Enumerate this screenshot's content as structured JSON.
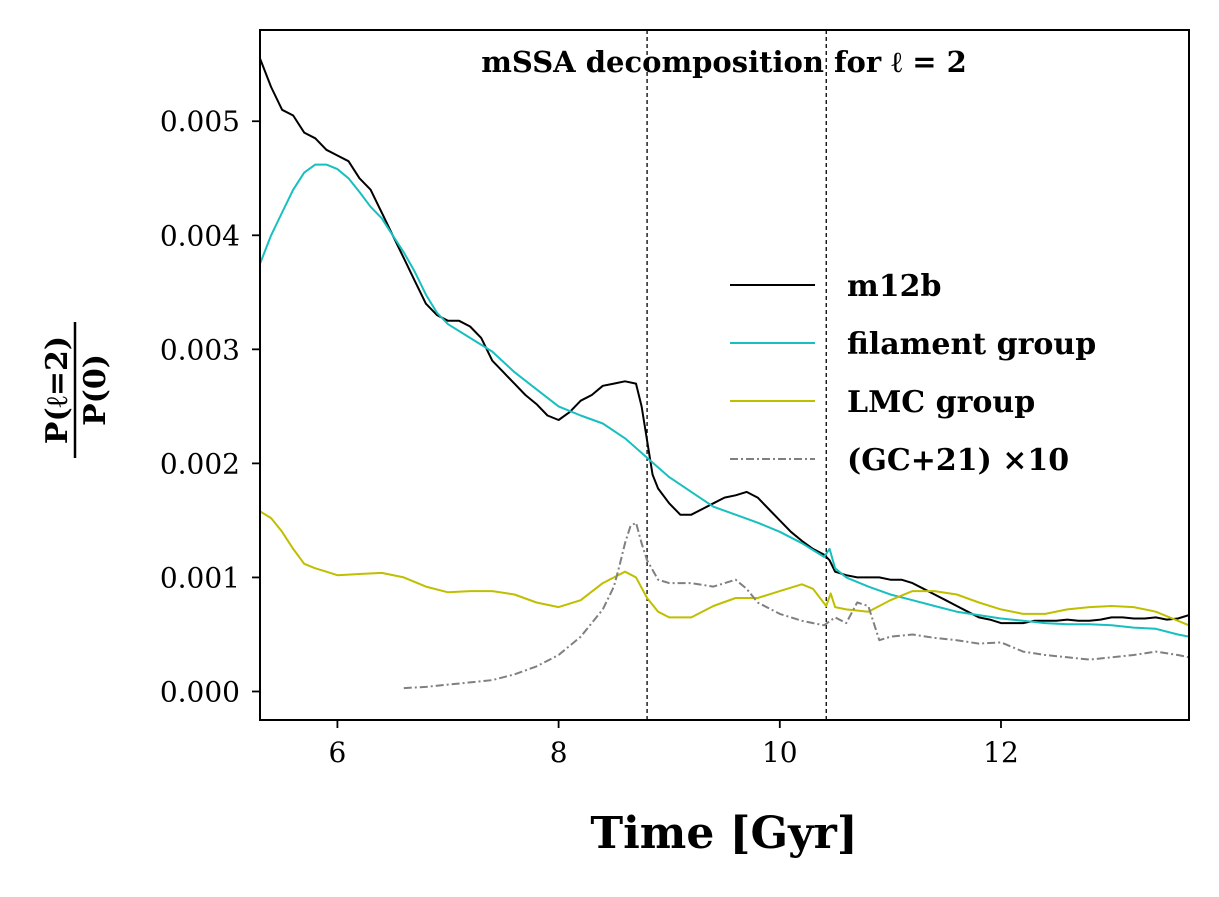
{
  "chart_data": {
    "type": "line",
    "title": "mSSA decomposition for ℓ = 2",
    "xlabel": "Time [Gyr]",
    "ylabel": {
      "numerator": "P(ℓ=2)",
      "denominator": "P(0)"
    },
    "xlim": [
      5.3,
      13.7
    ],
    "ylim": [
      -0.00025,
      0.0058
    ],
    "x_ticks": [
      6,
      8,
      10,
      12
    ],
    "x_tick_labels": [
      "6",
      "8",
      "10",
      "12"
    ],
    "y_ticks": [
      0.0,
      0.001,
      0.002,
      0.003,
      0.004,
      0.005
    ],
    "y_tick_labels": [
      "0.000",
      "0.001",
      "0.002",
      "0.003",
      "0.004",
      "0.005"
    ],
    "vlines": [
      8.8,
      10.42
    ],
    "legend_position": "center-right",
    "series": [
      {
        "name": "m12b",
        "color": "#000000",
        "style": "solid",
        "points": [
          [
            5.3,
            0.00555
          ],
          [
            5.4,
            0.0053
          ],
          [
            5.5,
            0.0051
          ],
          [
            5.6,
            0.00505
          ],
          [
            5.7,
            0.0049
          ],
          [
            5.8,
            0.00485
          ],
          [
            5.9,
            0.00475
          ],
          [
            6.0,
            0.0047
          ],
          [
            6.1,
            0.00465
          ],
          [
            6.2,
            0.0045
          ],
          [
            6.3,
            0.0044
          ],
          [
            6.4,
            0.0042
          ],
          [
            6.5,
            0.004
          ],
          [
            6.6,
            0.0038
          ],
          [
            6.7,
            0.0036
          ],
          [
            6.8,
            0.0034
          ],
          [
            6.9,
            0.0033
          ],
          [
            7.0,
            0.00325
          ],
          [
            7.1,
            0.00325
          ],
          [
            7.2,
            0.0032
          ],
          [
            7.3,
            0.0031
          ],
          [
            7.4,
            0.0029
          ],
          [
            7.5,
            0.0028
          ],
          [
            7.6,
            0.0027
          ],
          [
            7.7,
            0.0026
          ],
          [
            7.8,
            0.00252
          ],
          [
            7.9,
            0.00242
          ],
          [
            8.0,
            0.00238
          ],
          [
            8.1,
            0.00245
          ],
          [
            8.2,
            0.00255
          ],
          [
            8.3,
            0.0026
          ],
          [
            8.4,
            0.00268
          ],
          [
            8.5,
            0.0027
          ],
          [
            8.6,
            0.00272
          ],
          [
            8.7,
            0.0027
          ],
          [
            8.75,
            0.0025
          ],
          [
            8.8,
            0.0022
          ],
          [
            8.85,
            0.0019
          ],
          [
            8.9,
            0.00178
          ],
          [
            9.0,
            0.00165
          ],
          [
            9.1,
            0.00155
          ],
          [
            9.2,
            0.00155
          ],
          [
            9.3,
            0.0016
          ],
          [
            9.4,
            0.00165
          ],
          [
            9.5,
            0.0017
          ],
          [
            9.6,
            0.00172
          ],
          [
            9.7,
            0.00175
          ],
          [
            9.8,
            0.0017
          ],
          [
            9.9,
            0.0016
          ],
          [
            10.0,
            0.0015
          ],
          [
            10.1,
            0.0014
          ],
          [
            10.2,
            0.00132
          ],
          [
            10.3,
            0.00125
          ],
          [
            10.4,
            0.0012
          ],
          [
            10.45,
            0.00115
          ],
          [
            10.5,
            0.00105
          ],
          [
            10.6,
            0.00102
          ],
          [
            10.7,
            0.001
          ],
          [
            10.8,
            0.001
          ],
          [
            10.9,
            0.001
          ],
          [
            11.0,
            0.00098
          ],
          [
            11.1,
            0.00098
          ],
          [
            11.2,
            0.00095
          ],
          [
            11.3,
            0.0009
          ],
          [
            11.4,
            0.00085
          ],
          [
            11.5,
            0.0008
          ],
          [
            11.6,
            0.00075
          ],
          [
            11.7,
            0.0007
          ],
          [
            11.8,
            0.00065
          ],
          [
            11.9,
            0.00063
          ],
          [
            12.0,
            0.0006
          ],
          [
            12.1,
            0.0006
          ],
          [
            12.2,
            0.0006
          ],
          [
            12.3,
            0.00062
          ],
          [
            12.4,
            0.00062
          ],
          [
            12.5,
            0.00062
          ],
          [
            12.6,
            0.00063
          ],
          [
            12.7,
            0.00062
          ],
          [
            12.8,
            0.00062
          ],
          [
            12.9,
            0.00063
          ],
          [
            13.0,
            0.00065
          ],
          [
            13.1,
            0.00065
          ],
          [
            13.2,
            0.00064
          ],
          [
            13.3,
            0.00064
          ],
          [
            13.4,
            0.00065
          ],
          [
            13.5,
            0.00063
          ],
          [
            13.6,
            0.00064
          ],
          [
            13.7,
            0.00067
          ]
        ]
      },
      {
        "name": "filament group",
        "color": "#17bfbf",
        "style": "solid",
        "points": [
          [
            5.3,
            0.00375
          ],
          [
            5.4,
            0.004
          ],
          [
            5.5,
            0.0042
          ],
          [
            5.6,
            0.0044
          ],
          [
            5.7,
            0.00455
          ],
          [
            5.8,
            0.00462
          ],
          [
            5.9,
            0.00462
          ],
          [
            6.0,
            0.00458
          ],
          [
            6.1,
            0.0045
          ],
          [
            6.2,
            0.00438
          ],
          [
            6.3,
            0.00425
          ],
          [
            6.4,
            0.00415
          ],
          [
            6.5,
            0.004
          ],
          [
            6.6,
            0.00385
          ],
          [
            6.7,
            0.00368
          ],
          [
            6.8,
            0.00348
          ],
          [
            6.9,
            0.00332
          ],
          [
            7.0,
            0.00322
          ],
          [
            7.2,
            0.0031
          ],
          [
            7.4,
            0.00298
          ],
          [
            7.6,
            0.0028
          ],
          [
            7.8,
            0.00265
          ],
          [
            8.0,
            0.0025
          ],
          [
            8.2,
            0.00242
          ],
          [
            8.4,
            0.00235
          ],
          [
            8.6,
            0.00222
          ],
          [
            8.8,
            0.00205
          ],
          [
            9.0,
            0.00188
          ],
          [
            9.2,
            0.00175
          ],
          [
            9.4,
            0.00162
          ],
          [
            9.6,
            0.00155
          ],
          [
            9.8,
            0.00148
          ],
          [
            10.0,
            0.0014
          ],
          [
            10.2,
            0.0013
          ],
          [
            10.4,
            0.00118
          ],
          [
            10.45,
            0.00125
          ],
          [
            10.5,
            0.00108
          ],
          [
            10.6,
            0.001
          ],
          [
            10.8,
            0.00092
          ],
          [
            11.0,
            0.00085
          ],
          [
            11.2,
            0.0008
          ],
          [
            11.4,
            0.00075
          ],
          [
            11.6,
            0.0007
          ],
          [
            11.8,
            0.00067
          ],
          [
            12.0,
            0.00064
          ],
          [
            12.2,
            0.00062
          ],
          [
            12.4,
            0.0006
          ],
          [
            12.6,
            0.00059
          ],
          [
            12.8,
            0.00059
          ],
          [
            13.0,
            0.00058
          ],
          [
            13.2,
            0.00056
          ],
          [
            13.4,
            0.00055
          ],
          [
            13.6,
            0.0005
          ],
          [
            13.7,
            0.00048
          ]
        ]
      },
      {
        "name": "LMC group",
        "color": "#bfbf00",
        "style": "solid",
        "points": [
          [
            5.3,
            0.00158
          ],
          [
            5.4,
            0.00152
          ],
          [
            5.5,
            0.0014
          ],
          [
            5.6,
            0.00125
          ],
          [
            5.7,
            0.00112
          ],
          [
            5.8,
            0.00108
          ],
          [
            5.9,
            0.00105
          ],
          [
            6.0,
            0.00102
          ],
          [
            6.2,
            0.00103
          ],
          [
            6.4,
            0.00104
          ],
          [
            6.6,
            0.001
          ],
          [
            6.8,
            0.00092
          ],
          [
            7.0,
            0.00087
          ],
          [
            7.2,
            0.00088
          ],
          [
            7.4,
            0.00088
          ],
          [
            7.6,
            0.00085
          ],
          [
            7.8,
            0.00078
          ],
          [
            8.0,
            0.00074
          ],
          [
            8.2,
            0.0008
          ],
          [
            8.4,
            0.00095
          ],
          [
            8.6,
            0.00105
          ],
          [
            8.7,
            0.001
          ],
          [
            8.8,
            0.00082
          ],
          [
            8.9,
            0.0007
          ],
          [
            9.0,
            0.00065
          ],
          [
            9.2,
            0.00065
          ],
          [
            9.4,
            0.00075
          ],
          [
            9.6,
            0.00082
          ],
          [
            9.8,
            0.00082
          ],
          [
            10.0,
            0.00088
          ],
          [
            10.2,
            0.00094
          ],
          [
            10.3,
            0.0009
          ],
          [
            10.42,
            0.00075
          ],
          [
            10.46,
            0.00086
          ],
          [
            10.5,
            0.00074
          ],
          [
            10.6,
            0.00072
          ],
          [
            10.8,
            0.0007
          ],
          [
            11.0,
            0.0008
          ],
          [
            11.2,
            0.00088
          ],
          [
            11.4,
            0.00088
          ],
          [
            11.6,
            0.00085
          ],
          [
            11.8,
            0.00078
          ],
          [
            12.0,
            0.00072
          ],
          [
            12.2,
            0.00068
          ],
          [
            12.4,
            0.00068
          ],
          [
            12.6,
            0.00072
          ],
          [
            12.8,
            0.00074
          ],
          [
            13.0,
            0.00075
          ],
          [
            13.2,
            0.00074
          ],
          [
            13.4,
            0.0007
          ],
          [
            13.6,
            0.00062
          ],
          [
            13.7,
            0.00058
          ]
        ]
      },
      {
        "name": "(GC+21) ×10",
        "color": "#808080",
        "style": "dashdot",
        "points": [
          [
            6.6,
            3e-05
          ],
          [
            6.8,
            4e-05
          ],
          [
            7.0,
            6e-05
          ],
          [
            7.2,
            8e-05
          ],
          [
            7.4,
            0.0001
          ],
          [
            7.6,
            0.00015
          ],
          [
            7.8,
            0.00022
          ],
          [
            8.0,
            0.00032
          ],
          [
            8.2,
            0.00048
          ],
          [
            8.4,
            0.00072
          ],
          [
            8.5,
            0.00092
          ],
          [
            8.55,
            0.0011
          ],
          [
            8.6,
            0.0013
          ],
          [
            8.65,
            0.00145
          ],
          [
            8.7,
            0.00148
          ],
          [
            8.75,
            0.0013
          ],
          [
            8.8,
            0.00115
          ],
          [
            8.9,
            0.00098
          ],
          [
            9.0,
            0.00095
          ],
          [
            9.2,
            0.00095
          ],
          [
            9.4,
            0.00092
          ],
          [
            9.6,
            0.00098
          ],
          [
            9.7,
            0.0009
          ],
          [
            9.8,
            0.00078
          ],
          [
            10.0,
            0.00068
          ],
          [
            10.2,
            0.00062
          ],
          [
            10.4,
            0.00058
          ],
          [
            10.5,
            0.00065
          ],
          [
            10.6,
            0.0006
          ],
          [
            10.7,
            0.00078
          ],
          [
            10.8,
            0.00075
          ],
          [
            10.9,
            0.00045
          ],
          [
            11.0,
            0.00048
          ],
          [
            11.2,
            0.0005
          ],
          [
            11.4,
            0.00047
          ],
          [
            11.6,
            0.00045
          ],
          [
            11.8,
            0.00042
          ],
          [
            12.0,
            0.00043
          ],
          [
            12.2,
            0.00035
          ],
          [
            12.4,
            0.00032
          ],
          [
            12.6,
            0.0003
          ],
          [
            12.8,
            0.00028
          ],
          [
            13.0,
            0.0003
          ],
          [
            13.2,
            0.00032
          ],
          [
            13.4,
            0.00035
          ],
          [
            13.6,
            0.00032
          ],
          [
            13.7,
            0.0003
          ]
        ]
      }
    ]
  }
}
